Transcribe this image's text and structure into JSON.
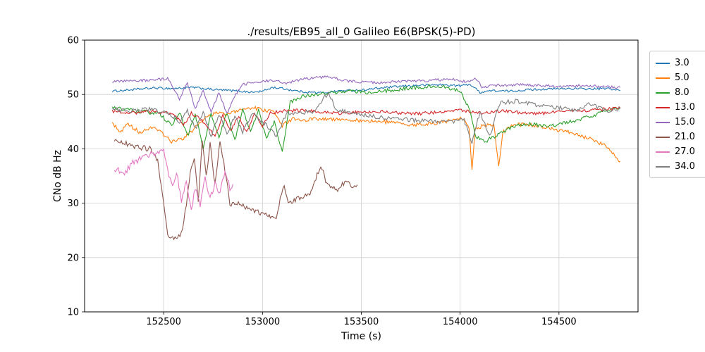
{
  "chart_data": {
    "type": "line",
    "title": "./results/EB95_all_0 Galileo E6(BPSK(5)-PD)",
    "xlabel": "Time (s)",
    "ylabel": "CNo dB Hz",
    "xlim": [
      152100,
      154900
    ],
    "ylim": [
      10,
      60
    ],
    "xticks": [
      152500,
      153000,
      153500,
      154000,
      154500
    ],
    "yticks": [
      10,
      20,
      30,
      40,
      50,
      60
    ],
    "grid": true,
    "legend_position": "outside-right",
    "grid_color": "#cfcfcf",
    "axis_color": "#000000",
    "series": [
      {
        "name": "3.0",
        "color": "#1f77b4",
        "noise": 0.2,
        "points": [
          [
            152240,
            50.6
          ],
          [
            152350,
            50.9
          ],
          [
            152450,
            51.2
          ],
          [
            152550,
            51.1
          ],
          [
            152650,
            51.3
          ],
          [
            152750,
            50.9
          ],
          [
            152850,
            50.7
          ],
          [
            152950,
            50.4
          ],
          [
            153000,
            50.6
          ],
          [
            153050,
            51.3
          ],
          [
            153100,
            51.1
          ],
          [
            153200,
            50.5
          ],
          [
            153300,
            50.3
          ],
          [
            153400,
            50.7
          ],
          [
            153500,
            50.8
          ],
          [
            153600,
            51.2
          ],
          [
            153700,
            51.5
          ],
          [
            153800,
            51.7
          ],
          [
            153900,
            51.8
          ],
          [
            154000,
            51.6
          ],
          [
            154050,
            51.9
          ],
          [
            154100,
            50.4
          ],
          [
            154150,
            50.7
          ],
          [
            154250,
            50.6
          ],
          [
            154350,
            50.9
          ],
          [
            154450,
            51.0
          ],
          [
            154550,
            51.1
          ],
          [
            154650,
            51.0
          ],
          [
            154750,
            51.1
          ],
          [
            154810,
            50.7
          ]
        ]
      },
      {
        "name": "5.0",
        "color": "#ff7f0e",
        "noise": 0.35,
        "points": [
          [
            152240,
            44.8
          ],
          [
            152280,
            43.2
          ],
          [
            152320,
            44.5
          ],
          [
            152380,
            43.0
          ],
          [
            152440,
            44.0
          ],
          [
            152500,
            42.6
          ],
          [
            152540,
            41.3
          ],
          [
            152600,
            42.0
          ],
          [
            152650,
            43.5
          ],
          [
            152700,
            45.5
          ],
          [
            152760,
            46.6
          ],
          [
            152820,
            46.3
          ],
          [
            152880,
            47.0
          ],
          [
            152940,
            47.6
          ],
          [
            153000,
            47.2
          ],
          [
            153060,
            46.8
          ],
          [
            153100,
            44.3
          ],
          [
            153160,
            45.6
          ],
          [
            153220,
            45.3
          ],
          [
            153300,
            45.6
          ],
          [
            153400,
            45.4
          ],
          [
            153500,
            45.2
          ],
          [
            153600,
            45.0
          ],
          [
            153700,
            44.6
          ],
          [
            153800,
            44.4
          ],
          [
            153900,
            44.9
          ],
          [
            153960,
            45.3
          ],
          [
            154020,
            45.6
          ],
          [
            154045,
            44.0
          ],
          [
            154060,
            36.2
          ],
          [
            154075,
            43.5
          ],
          [
            154120,
            44.3
          ],
          [
            154170,
            44.6
          ],
          [
            154195,
            36.6
          ],
          [
            154215,
            43.0
          ],
          [
            154260,
            44.3
          ],
          [
            154330,
            44.6
          ],
          [
            154400,
            44.1
          ],
          [
            154470,
            43.6
          ],
          [
            154540,
            43.2
          ],
          [
            154610,
            42.4
          ],
          [
            154680,
            41.5
          ],
          [
            154730,
            40.6
          ],
          [
            154770,
            39.3
          ],
          [
            154810,
            37.7
          ]
        ]
      },
      {
        "name": "8.0",
        "color": "#2ca02c",
        "noise": 0.35,
        "points": [
          [
            152240,
            47.6
          ],
          [
            152320,
            47.2
          ],
          [
            152400,
            46.8
          ],
          [
            152480,
            46.4
          ],
          [
            152540,
            44.2
          ],
          [
            152580,
            46.8
          ],
          [
            152620,
            42.3
          ],
          [
            152660,
            46.2
          ],
          [
            152700,
            40.2
          ],
          [
            152740,
            46.4
          ],
          [
            152780,
            42.0
          ],
          [
            152820,
            46.6
          ],
          [
            152860,
            41.5
          ],
          [
            152900,
            47.3
          ],
          [
            152940,
            43.2
          ],
          [
            152980,
            47.0
          ],
          [
            153020,
            42.0
          ],
          [
            153060,
            45.0
          ],
          [
            153100,
            39.5
          ],
          [
            153140,
            48.6
          ],
          [
            153200,
            49.6
          ],
          [
            153280,
            50.1
          ],
          [
            153360,
            50.4
          ],
          [
            153450,
            50.6
          ],
          [
            153550,
            50.3
          ],
          [
            153650,
            50.8
          ],
          [
            153750,
            51.2
          ],
          [
            153850,
            51.5
          ],
          [
            153930,
            51.3
          ],
          [
            154000,
            50.6
          ],
          [
            154050,
            47.0
          ],
          [
            154080,
            42.2
          ],
          [
            154130,
            41.4
          ],
          [
            154180,
            42.4
          ],
          [
            154240,
            43.6
          ],
          [
            154300,
            44.3
          ],
          [
            154370,
            44.6
          ],
          [
            154440,
            44.1
          ],
          [
            154510,
            44.6
          ],
          [
            154580,
            45.2
          ],
          [
            154650,
            45.9
          ],
          [
            154720,
            46.7
          ],
          [
            154770,
            47.2
          ],
          [
            154810,
            47.6
          ]
        ]
      },
      {
        "name": "13.0",
        "color": "#d62728",
        "noise": 0.3,
        "points": [
          [
            152240,
            46.9
          ],
          [
            152350,
            46.6
          ],
          [
            152450,
            46.9
          ],
          [
            152550,
            46.4
          ],
          [
            152600,
            44.3
          ],
          [
            152640,
            46.6
          ],
          [
            152700,
            45.0
          ],
          [
            152760,
            42.3
          ],
          [
            152800,
            46.2
          ],
          [
            152840,
            43.4
          ],
          [
            152880,
            46.0
          ],
          [
            152920,
            43.0
          ],
          [
            152960,
            46.4
          ],
          [
            153000,
            44.2
          ],
          [
            153040,
            46.6
          ],
          [
            153100,
            46.9
          ],
          [
            153200,
            47.1
          ],
          [
            153300,
            46.7
          ],
          [
            153400,
            46.5
          ],
          [
            153500,
            46.8
          ],
          [
            153600,
            46.9
          ],
          [
            153700,
            46.6
          ],
          [
            153800,
            46.5
          ],
          [
            153900,
            46.8
          ],
          [
            154000,
            47.1
          ],
          [
            154100,
            46.6
          ],
          [
            154200,
            47.0
          ],
          [
            154300,
            46.7
          ],
          [
            154400,
            46.5
          ],
          [
            154500,
            46.8
          ],
          [
            154600,
            47.0
          ],
          [
            154700,
            47.2
          ],
          [
            154810,
            47.5
          ]
        ]
      },
      {
        "name": "15.0",
        "color": "#9467bd",
        "noise": 0.25,
        "points": [
          [
            152240,
            52.3
          ],
          [
            152350,
            52.5
          ],
          [
            152450,
            52.7
          ],
          [
            152520,
            52.9
          ],
          [
            152580,
            49.2
          ],
          [
            152620,
            52.2
          ],
          [
            152660,
            47.3
          ],
          [
            152700,
            50.8
          ],
          [
            152740,
            46.8
          ],
          [
            152780,
            50.4
          ],
          [
            152820,
            46.5
          ],
          [
            152860,
            49.8
          ],
          [
            152900,
            51.8
          ],
          [
            152960,
            52.3
          ],
          [
            153040,
            52.6
          ],
          [
            153120,
            52.1
          ],
          [
            153200,
            52.8
          ],
          [
            153280,
            53.1
          ],
          [
            153340,
            53.3
          ],
          [
            153400,
            52.6
          ],
          [
            153500,
            52.3
          ],
          [
            153600,
            52.2
          ],
          [
            153700,
            52.4
          ],
          [
            153800,
            52.5
          ],
          [
            153900,
            52.7
          ],
          [
            153960,
            52.9
          ],
          [
            154030,
            52.3
          ],
          [
            154080,
            53.0
          ],
          [
            154110,
            51.4
          ],
          [
            154200,
            51.7
          ],
          [
            154300,
            51.8
          ],
          [
            154400,
            51.6
          ],
          [
            154500,
            51.5
          ],
          [
            154600,
            51.6
          ],
          [
            154700,
            51.5
          ],
          [
            154810,
            51.3
          ]
        ]
      },
      {
        "name": "21.0",
        "color": "#8c564b",
        "noise": 0.5,
        "points": [
          [
            152250,
            41.6
          ],
          [
            152310,
            40.9
          ],
          [
            152370,
            40.3
          ],
          [
            152430,
            40.0
          ],
          [
            152470,
            38.0
          ],
          [
            152500,
            30.0
          ],
          [
            152520,
            24.2
          ],
          [
            152545,
            23.6
          ],
          [
            152570,
            23.9
          ],
          [
            152595,
            24.8
          ],
          [
            152615,
            30.0
          ],
          [
            152635,
            36.0
          ],
          [
            152655,
            38.2
          ],
          [
            152675,
            30.5
          ],
          [
            152695,
            41.8
          ],
          [
            152715,
            35.0
          ],
          [
            152735,
            40.8
          ],
          [
            152760,
            33.2
          ],
          [
            152785,
            41.3
          ],
          [
            152810,
            36.0
          ],
          [
            152835,
            30.0
          ],
          [
            152860,
            29.6
          ],
          [
            152890,
            29.9
          ],
          [
            152920,
            29.2
          ],
          [
            152960,
            28.6
          ],
          [
            153000,
            28.2
          ],
          [
            153040,
            27.3
          ],
          [
            153070,
            27.0
          ],
          [
            153090,
            30.8
          ],
          [
            153110,
            33.2
          ],
          [
            153130,
            30.2
          ],
          [
            153160,
            30.6
          ],
          [
            153200,
            31.0
          ],
          [
            153240,
            31.4
          ],
          [
            153270,
            34.6
          ],
          [
            153295,
            36.9
          ],
          [
            153320,
            34.2
          ],
          [
            153350,
            33.1
          ],
          [
            153380,
            32.6
          ],
          [
            153410,
            33.6
          ],
          [
            153440,
            33.9
          ],
          [
            153460,
            32.6
          ],
          [
            153480,
            33.4
          ]
        ]
      },
      {
        "name": "27.0",
        "color": "#e377c2",
        "noise": 0.6,
        "points": [
          [
            152250,
            35.6
          ],
          [
            152270,
            36.6
          ],
          [
            152290,
            35.1
          ],
          [
            152320,
            36.3
          ],
          [
            152350,
            37.6
          ],
          [
            152390,
            38.4
          ],
          [
            152430,
            38.9
          ],
          [
            152470,
            39.4
          ],
          [
            152500,
            39.7
          ],
          [
            152520,
            36.2
          ],
          [
            152545,
            33.1
          ],
          [
            152565,
            36.0
          ],
          [
            152590,
            30.2
          ],
          [
            152615,
            34.2
          ],
          [
            152640,
            28.6
          ],
          [
            152660,
            32.8
          ],
          [
            152685,
            29.8
          ],
          [
            152710,
            34.8
          ],
          [
            152735,
            30.8
          ],
          [
            152760,
            33.8
          ],
          [
            152785,
            31.8
          ],
          [
            152810,
            35.8
          ],
          [
            152835,
            32.9
          ],
          [
            152850,
            33.5
          ]
        ]
      },
      {
        "name": "34.0",
        "color": "#7f7f7f",
        "noise": 0.4,
        "points": [
          [
            152240,
            47.3
          ],
          [
            152340,
            47.0
          ],
          [
            152440,
            47.3
          ],
          [
            152520,
            46.6
          ],
          [
            152580,
            45.0
          ],
          [
            152620,
            47.0
          ],
          [
            152660,
            43.6
          ],
          [
            152700,
            46.8
          ],
          [
            152740,
            42.2
          ],
          [
            152780,
            46.4
          ],
          [
            152820,
            42.6
          ],
          [
            152860,
            46.2
          ],
          [
            152900,
            43.2
          ],
          [
            152950,
            46.6
          ],
          [
            153020,
            44.3
          ],
          [
            153070,
            42.2
          ],
          [
            153120,
            46.4
          ],
          [
            153200,
            46.7
          ],
          [
            153270,
            47.0
          ],
          [
            153310,
            49.6
          ],
          [
            153340,
            50.0
          ],
          [
            153370,
            47.2
          ],
          [
            153440,
            46.6
          ],
          [
            153550,
            46.0
          ],
          [
            153650,
            45.6
          ],
          [
            153750,
            45.3
          ],
          [
            153850,
            45.1
          ],
          [
            153950,
            44.9
          ],
          [
            154020,
            45.3
          ],
          [
            154060,
            41.3
          ],
          [
            154100,
            46.8
          ],
          [
            154150,
            42.3
          ],
          [
            154200,
            48.4
          ],
          [
            154280,
            48.8
          ],
          [
            154360,
            48.2
          ],
          [
            154440,
            47.9
          ],
          [
            154520,
            47.4
          ],
          [
            154590,
            47.0
          ],
          [
            154650,
            48.4
          ],
          [
            154700,
            47.6
          ],
          [
            154760,
            46.9
          ],
          [
            154810,
            47.4
          ]
        ]
      }
    ]
  }
}
